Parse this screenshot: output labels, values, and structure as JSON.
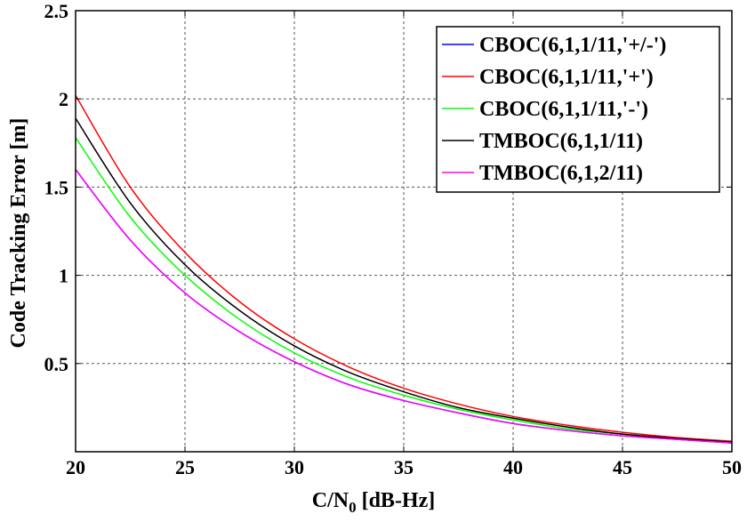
{
  "chart_data": {
    "type": "line",
    "xlabel_main": "C/N",
    "xlabel_sub": "0",
    "xlabel_rest": " [dB-Hz]",
    "ylabel": "Code Tracking Error [m]",
    "xlim": [
      20,
      50
    ],
    "ylim": [
      0,
      2.5
    ],
    "xticks": [
      20,
      25,
      30,
      35,
      40,
      45,
      50
    ],
    "xtick_labels": [
      "20",
      "25",
      "30",
      "35",
      "40",
      "45",
      "50"
    ],
    "yticks": [
      0.5,
      1,
      1.5,
      2,
      2.5
    ],
    "ytick_labels": [
      "0.5",
      "1",
      "1.5",
      "2",
      "2.5"
    ],
    "grid": true,
    "legend_position": "top-right",
    "x": [
      20,
      22.5,
      25,
      27.5,
      30,
      32.5,
      35,
      37.5,
      40,
      42.5,
      45,
      47.5,
      50
    ],
    "series": [
      {
        "name": "CBOC(6,1,1/11,'+/-')",
        "color": "#0000ff",
        "values": [
          1.6,
          1.2,
          0.9,
          0.68,
          0.51,
          0.38,
          0.29,
          0.22,
          0.16,
          0.12,
          0.09,
          0.07,
          0.05
        ]
      },
      {
        "name": "CBOC(6,1,1/11,'+')",
        "color": "#ff0000",
        "values": [
          2.02,
          1.5,
          1.13,
          0.85,
          0.64,
          0.48,
          0.36,
          0.27,
          0.2,
          0.15,
          0.11,
          0.08,
          0.06
        ]
      },
      {
        "name": "CBOC(6,1,1/11,'-')",
        "color": "#00ff00",
        "values": [
          1.78,
          1.33,
          1.0,
          0.75,
          0.56,
          0.42,
          0.32,
          0.24,
          0.18,
          0.13,
          0.1,
          0.07,
          0.055
        ]
      },
      {
        "name": "TMBOC(6,1,1/11)",
        "color": "#000000",
        "values": [
          1.89,
          1.41,
          1.06,
          0.8,
          0.6,
          0.45,
          0.34,
          0.25,
          0.19,
          0.14,
          0.1,
          0.075,
          0.055
        ]
      },
      {
        "name": "TMBOC(6,1,2/11)",
        "color": "#ff00ff",
        "values": [
          1.6,
          1.2,
          0.9,
          0.68,
          0.51,
          0.38,
          0.29,
          0.22,
          0.16,
          0.12,
          0.09,
          0.07,
          0.05
        ]
      }
    ]
  }
}
